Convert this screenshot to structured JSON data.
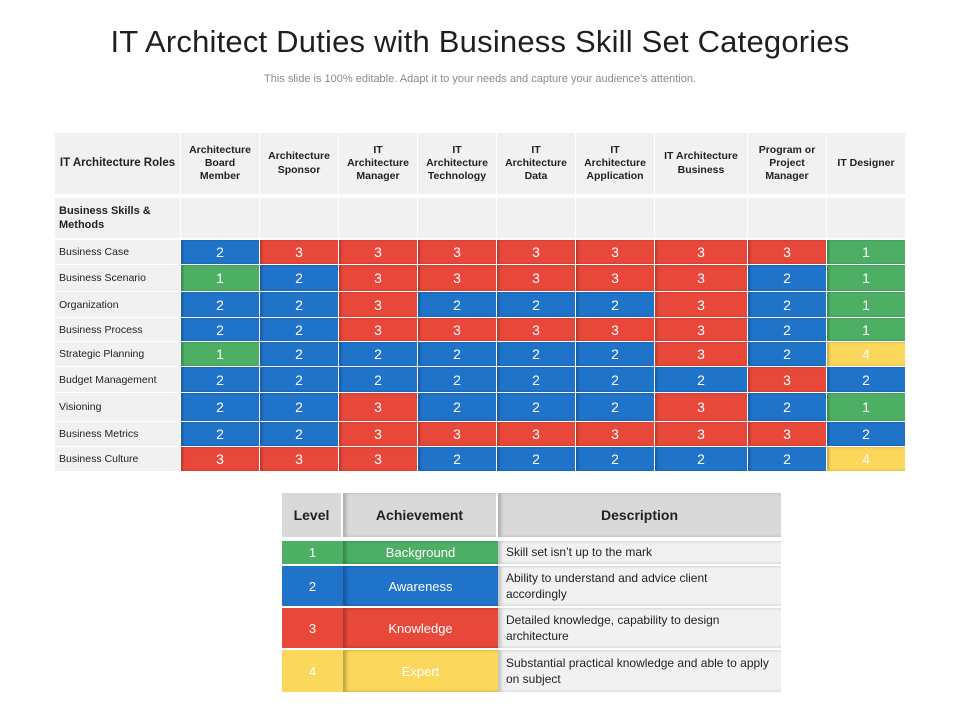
{
  "title": "IT Architect Duties with Business Skill Set Categories",
  "subtitle": "This slide is 100% editable. Adapt it to your needs and capture your audience's attention.",
  "colors": {
    "level_1": "#4caf64",
    "level_2": "#1f73c9",
    "level_3": "#e8483a",
    "level_4": "#fbd75b",
    "header_bg": "#f1f1f1",
    "legend_header_bg": "#d9d9d9"
  },
  "matrix": {
    "corner_label": "IT Architecture Roles",
    "columns": [
      "Architecture Board Member",
      "Architecture Sponsor",
      "IT Architecture Manager",
      "IT Architecture Technology",
      "IT Architecture Data",
      "IT Architecture Application",
      "IT Architecture Business",
      "Program or Project Manager",
      "IT Designer"
    ],
    "section_label": "Business Skills & Methods",
    "rows": [
      {
        "label": "Business Case",
        "values": [
          "2",
          "3",
          "3",
          "3",
          "3",
          "3",
          "3",
          "3",
          "1"
        ]
      },
      {
        "label": "Business Scenario",
        "values": [
          "1",
          "2",
          "3",
          "3",
          "3",
          "3",
          "3",
          "2",
          "1"
        ]
      },
      {
        "label": "Organization",
        "values": [
          "2",
          "2",
          "3",
          "2",
          "2",
          "2",
          "3",
          "2",
          "1"
        ]
      },
      {
        "label": "Business Process",
        "values": [
          "2",
          "2",
          "3",
          "3",
          "3",
          "3",
          "3",
          "2",
          "1"
        ]
      },
      {
        "label": "Strategic Planning",
        "values": [
          "1",
          "2",
          "2",
          "2",
          "2",
          "2",
          "3",
          "2",
          "4"
        ]
      },
      {
        "label": "Budget Management",
        "values": [
          "2",
          "2",
          "2",
          "2",
          "2",
          "2",
          "2",
          "3",
          "2"
        ]
      },
      {
        "label": "Visioning",
        "values": [
          "2",
          "2",
          "3",
          "2",
          "2",
          "2",
          "3",
          "2",
          "1"
        ]
      },
      {
        "label": "Business Metrics",
        "values": [
          "2",
          "2",
          "3",
          "3",
          "3",
          "3",
          "3",
          "3",
          "2"
        ]
      },
      {
        "label": "Business Culture",
        "values": [
          "3",
          "3",
          "3",
          "2",
          "2",
          "2",
          "2",
          "2",
          "4"
        ]
      }
    ]
  },
  "legend": {
    "headers": {
      "level": "Level",
      "achievement": "Achievement",
      "description": "Description"
    },
    "rows": [
      {
        "level": "1",
        "achievement": "Background",
        "description": "Skill set isn’t up to the mark"
      },
      {
        "level": "2",
        "achievement": "Awareness",
        "description": "Ability to understand and advice client accordingly"
      },
      {
        "level": "3",
        "achievement": "Knowledge",
        "description": "Detailed knowledge, capability to design architecture"
      },
      {
        "level": "4",
        "achievement": "Expert",
        "description": "Substantial practical knowledge and able to apply on subject"
      }
    ]
  }
}
